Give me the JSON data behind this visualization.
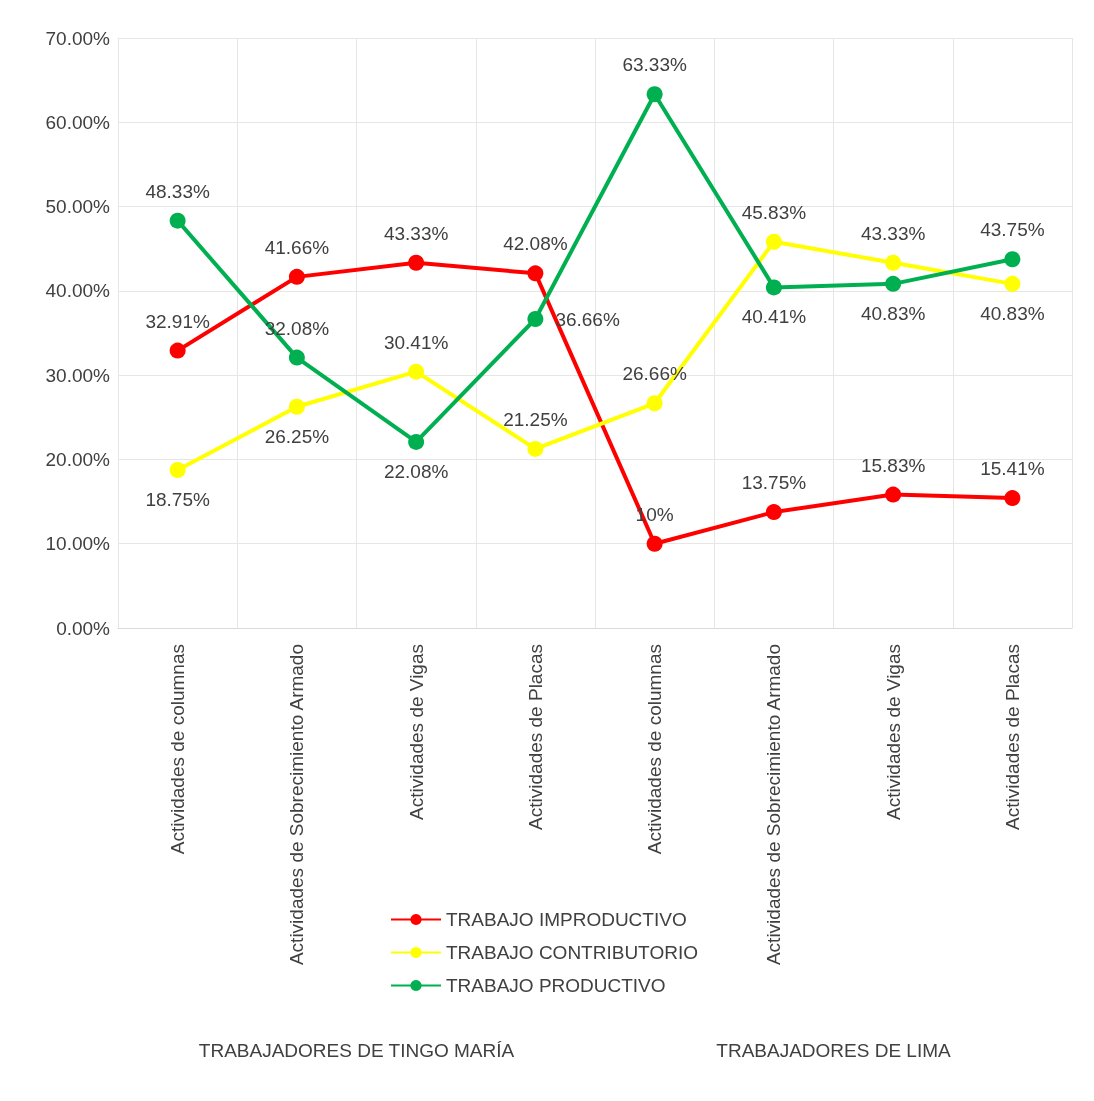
{
  "chart_data": {
    "type": "line",
    "categories": [
      "Actividades de columnas",
      "Actividades de Sobrecimiento Armado",
      "Actividades de Vigas",
      "Actividades de Placas",
      "Actividades de columnas",
      "Actividades de Sobrecimiento Armado",
      "Actividades de Vigas",
      "Actividades de Placas"
    ],
    "series": [
      {
        "name": "TRABAJO IMPRODUCTIVO",
        "color": "#ff0000",
        "values": [
          32.91,
          41.66,
          43.33,
          42.08,
          10,
          13.75,
          15.83,
          15.41
        ],
        "value_labels": [
          "32.91%",
          "41.66%",
          "43.33%",
          "42.08%",
          "10%",
          "13.75%",
          "15.83%",
          "15.41%"
        ]
      },
      {
        "name": "TRABAJO CONTRIBUTORIO",
        "color": "#ffff00",
        "values": [
          18.75,
          26.25,
          30.41,
          21.25,
          26.66,
          45.83,
          43.33,
          40.83
        ],
        "value_labels": [
          "18.75%",
          "26.25%",
          "30.41%",
          "21.25%",
          "26.66%",
          "45.83%",
          "43.33%",
          "40.83%"
        ]
      },
      {
        "name": "TRABAJO PRODUCTIVO",
        "color": "#00b050",
        "values": [
          48.33,
          32.08,
          22.08,
          36.66,
          63.33,
          40.41,
          40.83,
          43.75
        ],
        "value_labels": [
          "48.33%",
          "32.08%",
          "22.08%",
          "36.66%",
          "63.33%",
          "40.41%",
          "40.83%",
          "43.75%"
        ]
      }
    ],
    "ylim": [
      0,
      70
    ],
    "yticks": [
      {
        "value": 0,
        "label": "0.00%"
      },
      {
        "value": 10,
        "label": "10.00%"
      },
      {
        "value": 20,
        "label": "20.00%"
      },
      {
        "value": 30,
        "label": "30.00%"
      },
      {
        "value": 40,
        "label": "40.00%"
      },
      {
        "value": 50,
        "label": "50.00%"
      },
      {
        "value": 60,
        "label": "60.00%"
      },
      {
        "value": 70,
        "label": "70.00%"
      }
    ],
    "annotations": [
      "TRABAJADORES DE TINGO MARÍA",
      "TRABAJADORES DE LIMA"
    ],
    "grid": true,
    "legend": "bottom",
    "marker": "circle",
    "line_style": "solid"
  }
}
